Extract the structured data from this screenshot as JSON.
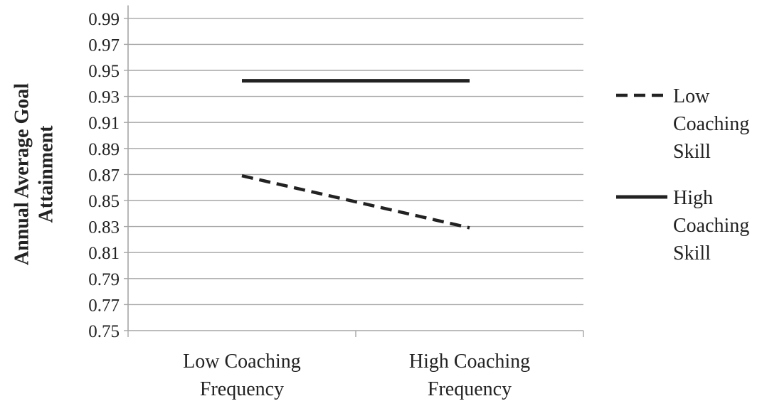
{
  "chart_data": {
    "type": "line",
    "title": "",
    "ylabel_lines": [
      "Annual Average Goal",
      "Attainment"
    ],
    "xlabel": "",
    "categories": [
      [
        "Low Coaching",
        "Frequency"
      ],
      [
        "High Coaching",
        "Frequency"
      ]
    ],
    "ylim": [
      0.75,
      1.0
    ],
    "yticks": [
      "0.75",
      "0.77",
      "0.79",
      "0.81",
      "0.83",
      "0.85",
      "0.87",
      "0.89",
      "0.91",
      "0.93",
      "0.95",
      "0.97",
      "0.99"
    ],
    "grid": true,
    "legend_position": "right",
    "series": [
      {
        "name_lines": [
          "Low",
          "Coaching",
          "Skill"
        ],
        "values": [
          0.869,
          0.829
        ],
        "style": "dashed",
        "color": "#222222"
      },
      {
        "name_lines": [
          "High",
          "Coaching",
          "Skill"
        ],
        "values": [
          0.942,
          0.942
        ],
        "style": "solid",
        "color": "#222222"
      }
    ]
  }
}
